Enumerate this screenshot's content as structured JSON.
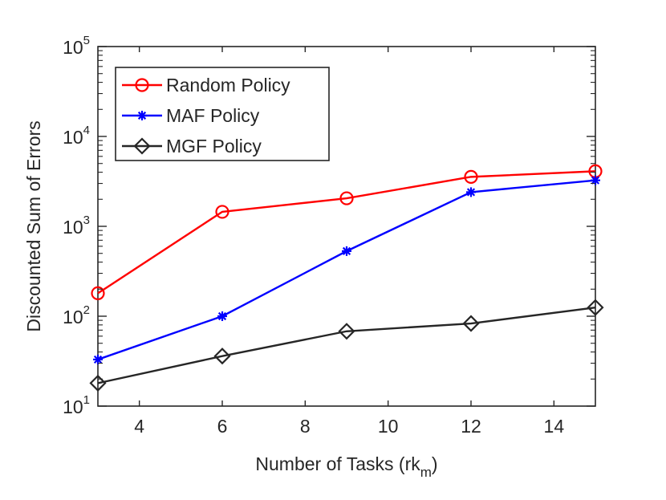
{
  "chart_data": {
    "type": "line",
    "title": "",
    "xlabel": "Number of Tasks (rk_m)",
    "xlabel_parts": {
      "main": "Number of Tasks (rk",
      "sub": "m",
      "tail": ")"
    },
    "ylabel": "Discounted Sum of Errors",
    "x": [
      3,
      6,
      9,
      12,
      15
    ],
    "xlim": [
      3,
      15
    ],
    "ylim": [
      10,
      100000
    ],
    "yscale": "log",
    "xticks": [
      4,
      6,
      8,
      10,
      12,
      14
    ],
    "yticks": [
      {
        "value": 10,
        "base": "10",
        "exp": "1"
      },
      {
        "value": 100,
        "base": "10",
        "exp": "2"
      },
      {
        "value": 1000,
        "base": "10",
        "exp": "3"
      },
      {
        "value": 10000,
        "base": "10",
        "exp": "4"
      },
      {
        "value": 100000,
        "base": "10",
        "exp": "5"
      }
    ],
    "grid": false,
    "legend_position": "top-left",
    "series": [
      {
        "name": "Random Policy",
        "color": "#ff0000",
        "marker": "circle",
        "values": [
          180,
          1450,
          2050,
          3550,
          4100
        ]
      },
      {
        "name": "MAF Policy",
        "color": "#0000ff",
        "marker": "asterisk",
        "values": [
          33,
          100,
          530,
          2400,
          3250
        ]
      },
      {
        "name": "MGF Policy",
        "color": "#262626",
        "marker": "diamond",
        "values": [
          18,
          36,
          68,
          83,
          125
        ]
      }
    ]
  }
}
